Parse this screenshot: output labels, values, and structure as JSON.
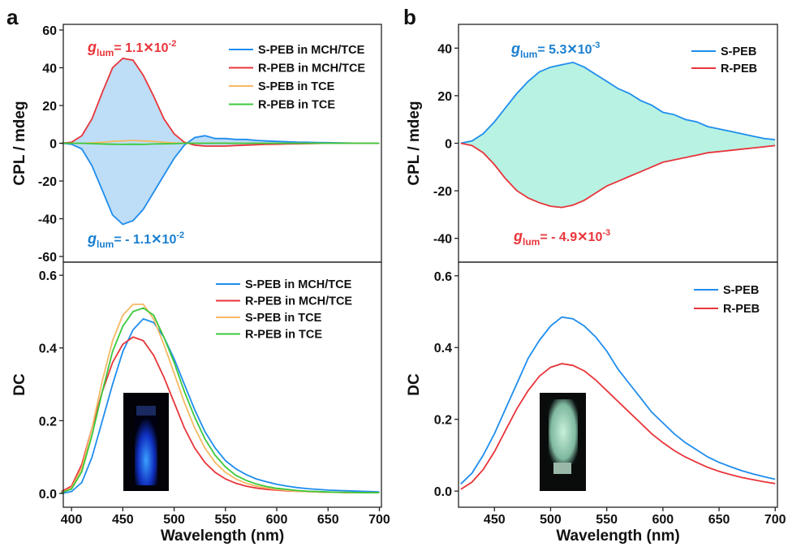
{
  "panel_labels": [
    "a",
    "b"
  ],
  "chart_data": [
    {
      "type": "line",
      "ylabel": "CPL / mdeg",
      "xlim": [
        392,
        702
      ],
      "ylim": [
        -63,
        63
      ],
      "yticks": [
        -60,
        -40,
        -20,
        0,
        20,
        40,
        60
      ],
      "legend": "upper right",
      "shade_color": "#6fb3ea",
      "x": [
        390,
        400,
        410,
        420,
        430,
        440,
        450,
        460,
        470,
        480,
        490,
        500,
        510,
        520,
        530,
        540,
        550,
        560,
        570,
        580,
        590,
        600,
        610,
        620,
        630,
        640,
        650,
        660,
        670,
        680,
        690,
        700
      ],
      "series": [
        {
          "name": "S-PEB in MCH/TCE",
          "color": "#1f8ded",
          "values": [
            0,
            -0.5,
            -3,
            -12,
            -25,
            -38,
            -43,
            -41,
            -35,
            -26,
            -17,
            -8,
            -1,
            3,
            4,
            2.5,
            2.5,
            2,
            2,
            1.5,
            1.2,
            1,
            0.8,
            0.6,
            0.5,
            0.4,
            0.3,
            0.2,
            0.1,
            0,
            0,
            0
          ]
        },
        {
          "name": "R-PEB in MCH/TCE",
          "color": "#e8353a",
          "values": [
            0,
            0.5,
            4,
            13,
            27,
            40,
            45,
            44,
            36,
            25,
            13,
            5,
            0.5,
            -1,
            -1.5,
            -1.5,
            -1.5,
            -1.2,
            -1,
            -0.8,
            -0.6,
            -0.5,
            -0.4,
            -0.3,
            -0.2,
            -0.1,
            0,
            0,
            0,
            0,
            0,
            0
          ]
        },
        {
          "name": "S-PEB in TCE",
          "color": "#f5b964",
          "values": [
            0,
            0,
            0,
            0.2,
            0.5,
            1,
            1.2,
            1.5,
            1.2,
            1,
            0.5,
            0.2,
            0,
            0,
            0,
            0,
            0,
            0,
            0,
            0,
            0,
            0,
            0,
            0,
            0,
            0,
            0,
            0,
            0,
            0,
            0,
            0
          ]
        },
        {
          "name": "R-PEB in TCE",
          "color": "#3cc83c",
          "values": [
            0,
            0,
            0,
            -0.2,
            -0.4,
            -0.5,
            -0.6,
            -0.5,
            -0.6,
            -0.4,
            -0.3,
            -0.2,
            0,
            0,
            0,
            0,
            0,
            0,
            0,
            0,
            0,
            0,
            0,
            0,
            0,
            0,
            0,
            0,
            0,
            0,
            0,
            0
          ]
        }
      ],
      "annotations": [
        {
          "g": "g",
          "sub": "lum",
          "text": "= 1.1✕10",
          "sup": "-2",
          "color": "#e8353a"
        },
        {
          "g": "g",
          "sub": "lum",
          "text": "= - 1.1✕10",
          "sup": "-2",
          "color": "#1a7fd0"
        }
      ]
    },
    {
      "type": "line",
      "ylabel": "DC",
      "xlabel": "Wavelength (nm)",
      "xlim": [
        392,
        702
      ],
      "ylim": [
        -0.038,
        0.636
      ],
      "xticks": [
        400,
        450,
        500,
        550,
        600,
        650,
        700
      ],
      "yticks": [
        {
          "value": 0,
          "label": "0.0"
        },
        0.2,
        0.4,
        0.6
      ],
      "legend": "upper right",
      "x": [
        390,
        400,
        410,
        420,
        430,
        440,
        450,
        460,
        470,
        480,
        490,
        500,
        510,
        520,
        530,
        540,
        550,
        560,
        570,
        580,
        590,
        600,
        610,
        620,
        630,
        640,
        650,
        660,
        670,
        680,
        690,
        700
      ],
      "series": [
        {
          "name": "S-PEB in MCH/TCE",
          "color": "#1f8ded",
          "values": [
            0,
            0.005,
            0.03,
            0.1,
            0.2,
            0.3,
            0.39,
            0.45,
            0.48,
            0.47,
            0.43,
            0.37,
            0.3,
            0.23,
            0.17,
            0.125,
            0.09,
            0.068,
            0.052,
            0.04,
            0.032,
            0.025,
            0.02,
            0.016,
            0.013,
            0.011,
            0.009,
            0.008,
            0.007,
            0.006,
            0.005,
            0.004
          ]
        },
        {
          "name": "R-PEB in MCH/TCE",
          "color": "#e8353a",
          "values": [
            0.005,
            0.02,
            0.08,
            0.18,
            0.28,
            0.36,
            0.41,
            0.43,
            0.42,
            0.38,
            0.32,
            0.25,
            0.18,
            0.125,
            0.085,
            0.058,
            0.04,
            0.028,
            0.02,
            0.015,
            0.011,
            0.009,
            0.007,
            0.006,
            0.005,
            0.004,
            0.003,
            0.003,
            0.002,
            0.002,
            0.002,
            0.002
          ]
        },
        {
          "name": "S-PEB in TCE",
          "color": "#f5b964",
          "values": [
            0.002,
            0.015,
            0.07,
            0.18,
            0.31,
            0.42,
            0.49,
            0.52,
            0.52,
            0.48,
            0.41,
            0.33,
            0.25,
            0.18,
            0.125,
            0.085,
            0.058,
            0.04,
            0.028,
            0.02,
            0.015,
            0.011,
            0.008,
            0.006,
            0.005,
            0.004,
            0.003,
            0.003,
            0.002,
            0.002,
            0.002,
            0.002
          ]
        },
        {
          "name": "R-PEB in TCE",
          "color": "#3cc83c",
          "values": [
            0.002,
            0.012,
            0.06,
            0.16,
            0.28,
            0.39,
            0.46,
            0.5,
            0.51,
            0.49,
            0.43,
            0.36,
            0.28,
            0.21,
            0.15,
            0.105,
            0.073,
            0.05,
            0.036,
            0.026,
            0.019,
            0.014,
            0.011,
            0.008,
            0.006,
            0.005,
            0.004,
            0.003,
            0.003,
            0.002,
            0.002,
            0.002
          ]
        }
      ]
    },
    {
      "type": "line",
      "ylabel": "CPL / mdeg",
      "xlim": [
        418,
        702
      ],
      "ylim": [
        -50,
        50
      ],
      "yticks": [
        -40,
        -20,
        0,
        20,
        40
      ],
      "legend": "upper right",
      "shade_color": "#5fe3c0",
      "x": [
        420,
        430,
        440,
        450,
        460,
        470,
        480,
        490,
        500,
        510,
        520,
        530,
        540,
        550,
        560,
        570,
        580,
        590,
        600,
        610,
        620,
        630,
        640,
        650,
        660,
        670,
        680,
        690,
        700
      ],
      "series": [
        {
          "name": "S-PEB",
          "color": "#1f8ded",
          "values": [
            0,
            1,
            4,
            9,
            15,
            21,
            26,
            30,
            32,
            33,
            34,
            32,
            29,
            26,
            23,
            21,
            18,
            16,
            13,
            12,
            10,
            9,
            7,
            6,
            5,
            4,
            3,
            2,
            1.5
          ]
        },
        {
          "name": "R-PEB",
          "color": "#e8353a",
          "values": [
            0,
            -1,
            -4,
            -9,
            -15,
            -20,
            -23,
            -25,
            -26.5,
            -27,
            -26,
            -24,
            -21,
            -18,
            -16,
            -14,
            -12,
            -10,
            -8,
            -7,
            -6,
            -5,
            -4,
            -3.5,
            -3,
            -2.5,
            -2,
            -1.5,
            -1
          ]
        }
      ],
      "annotations": [
        {
          "g": "g",
          "sub": "lum",
          "text": "= 5.3✕10",
          "sup": "-3",
          "color": "#1a7fd0"
        },
        {
          "g": "g",
          "sub": "lum",
          "text": "= - 4.9✕10",
          "sup": "-3",
          "color": "#e8353a"
        }
      ]
    },
    {
      "type": "line",
      "ylabel": "DC",
      "xlabel": "Wavelength (nm)",
      "xlim": [
        418,
        702
      ],
      "ylim": [
        -0.045,
        0.638
      ],
      "xticks": [
        450,
        500,
        550,
        600,
        650,
        700
      ],
      "yticks": [
        {
          "value": 0,
          "label": "0.0"
        },
        0.2,
        0.4,
        0.6
      ],
      "legend": "upper right",
      "x": [
        420,
        430,
        440,
        450,
        460,
        470,
        480,
        490,
        500,
        510,
        520,
        530,
        540,
        550,
        560,
        570,
        580,
        590,
        600,
        610,
        620,
        630,
        640,
        650,
        660,
        670,
        680,
        690,
        700
      ],
      "series": [
        {
          "name": "S-PEB",
          "color": "#1f8ded",
          "values": [
            0.02,
            0.05,
            0.1,
            0.16,
            0.23,
            0.3,
            0.37,
            0.42,
            0.46,
            0.485,
            0.48,
            0.46,
            0.43,
            0.39,
            0.34,
            0.3,
            0.26,
            0.22,
            0.19,
            0.16,
            0.135,
            0.115,
            0.095,
            0.08,
            0.068,
            0.057,
            0.048,
            0.04,
            0.033
          ]
        },
        {
          "name": "R-PEB",
          "color": "#e8353a",
          "values": [
            0.005,
            0.025,
            0.06,
            0.11,
            0.17,
            0.23,
            0.28,
            0.32,
            0.345,
            0.355,
            0.35,
            0.335,
            0.31,
            0.28,
            0.25,
            0.22,
            0.19,
            0.16,
            0.135,
            0.113,
            0.095,
            0.08,
            0.066,
            0.055,
            0.046,
            0.038,
            0.032,
            0.026,
            0.021
          ]
        }
      ]
    }
  ]
}
